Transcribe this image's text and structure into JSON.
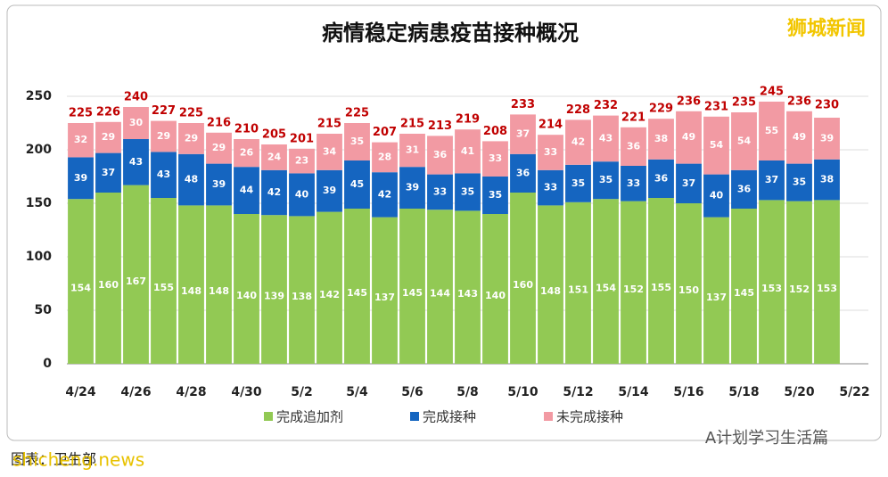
{
  "chart_data": {
    "type": "stacked_bar",
    "title": "病情稳定病患疫苗接种概况",
    "categories": [
      "4/24",
      null,
      "4/26",
      null,
      "4/28",
      null,
      "4/30",
      null,
      "5/2",
      null,
      "5/4",
      null,
      "5/6",
      null,
      "5/8",
      null,
      "5/10",
      null,
      "5/12",
      null,
      "5/14",
      null,
      "5/16",
      null,
      "5/18",
      null,
      "5/20",
      null,
      "5/22"
    ],
    "series": [
      {
        "name": "完成追加剂",
        "color": "#92c954",
        "values": [
          154,
          160,
          167,
          155,
          148,
          148,
          140,
          139,
          138,
          142,
          145,
          137,
          145,
          144,
          143,
          140,
          160,
          148,
          151,
          154,
          152,
          155,
          150,
          137,
          145,
          153,
          152,
          153,
          null
        ]
      },
      {
        "name": "完成接种",
        "color": "#1565c0",
        "values": [
          39,
          37,
          43,
          43,
          48,
          39,
          44,
          42,
          40,
          39,
          45,
          42,
          39,
          33,
          35,
          35,
          36,
          33,
          35,
          35,
          33,
          36,
          37,
          40,
          36,
          37,
          35,
          38,
          null
        ]
      },
      {
        "name": "未完成接种",
        "color": "#f29aa3",
        "values": [
          32,
          29,
          30,
          29,
          29,
          29,
          26,
          24,
          23,
          34,
          35,
          28,
          31,
          36,
          41,
          33,
          37,
          33,
          42,
          43,
          36,
          38,
          49,
          54,
          54,
          55,
          49,
          39,
          null
        ]
      }
    ],
    "totals": [
      225,
      226,
      240,
      227,
      225,
      216,
      210,
      205,
      201,
      215,
      225,
      207,
      215,
      213,
      219,
      208,
      233,
      214,
      228,
      232,
      221,
      229,
      236,
      231,
      235,
      245,
      236,
      230,
      null
    ],
    "ylim": [
      0,
      265
    ],
    "yticks": [
      0,
      50,
      100,
      150,
      200,
      250
    ],
    "grid": true,
    "source": "图表：卫生部",
    "watermarks": [
      "狮城新闻",
      "A计划学习生活篇",
      "shicheng.news"
    ]
  }
}
